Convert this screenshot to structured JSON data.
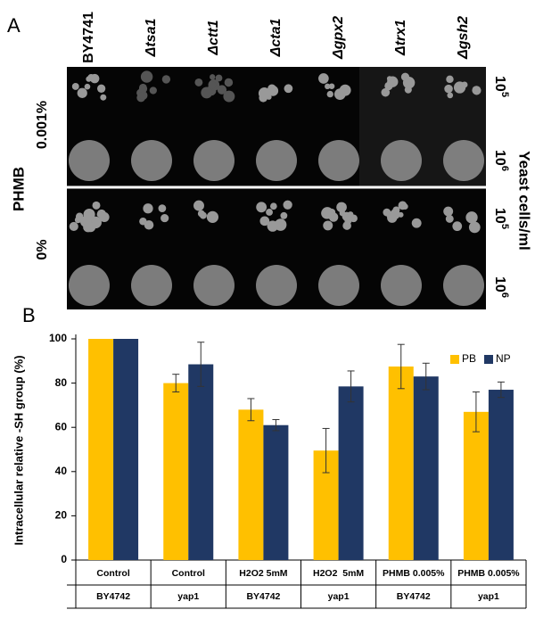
{
  "panel_a": {
    "label": "A",
    "strains": [
      "BY4741",
      "Δtsa1",
      "Δctt1",
      "Δcta1",
      "Δgpx2",
      "Δtrx1",
      "Δgsh2"
    ],
    "treatment": "PHMB",
    "concentrations": [
      "0.001%",
      "0%"
    ],
    "densities": [
      {
        "base": "10",
        "exp": "5"
      },
      {
        "base": "10",
        "exp": "6"
      }
    ],
    "density_axis": "Yeast cells/ml"
  },
  "chart_data": {
    "type": "bar",
    "panel_label": "B",
    "y_label": "Intracellular relative -SH group (%)",
    "categories": [
      "Control",
      "Control",
      "H2O2 5mM",
      "H2O2  5mM",
      "PHMB 0.005%",
      "PHMB 0.005%"
    ],
    "subcategories": [
      "BY4742",
      "yap1",
      "BY4742",
      "yap1",
      "BY4742",
      "yap1"
    ],
    "series": [
      {
        "name": "PB",
        "color": "#FFC000",
        "values": [
          100,
          80,
          68,
          49.5,
          87.5,
          67
        ],
        "errors": [
          0,
          4,
          5,
          10,
          10,
          9
        ]
      },
      {
        "name": "NP",
        "color": "#203864",
        "values": [
          100,
          88.5,
          61,
          78.5,
          83,
          77
        ],
        "errors": [
          0,
          10,
          2.5,
          7,
          6,
          3.5
        ]
      }
    ],
    "ylim": [
      0,
      100
    ],
    "yticks": [
      0,
      20,
      40,
      60,
      80,
      100
    ],
    "legend": "top-right"
  }
}
